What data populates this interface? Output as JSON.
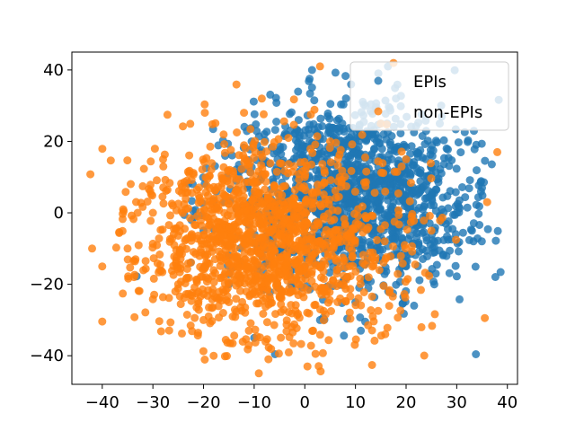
{
  "chart_data": {
    "type": "scatter",
    "xlim": [
      -46,
      42
    ],
    "ylim": [
      -48,
      45
    ],
    "x_ticks": [
      -40,
      -30,
      -20,
      -10,
      0,
      10,
      20,
      30,
      40
    ],
    "y_ticks": [
      -40,
      -20,
      0,
      20,
      40
    ],
    "x_tick_labels": [
      "−40",
      "−30",
      "−20",
      "−10",
      "0",
      "10",
      "20",
      "30",
      "40"
    ],
    "y_tick_labels": [
      "−40",
      "−20",
      "0",
      "20",
      "40"
    ],
    "grid": false,
    "legend_position": "top-right",
    "series": [
      {
        "name": "EPIs",
        "color": "#1f77b4",
        "cluster": {
          "center": [
            10,
            5
          ],
          "spread": [
            12,
            13
          ],
          "angle_deg": 35,
          "count": 1400
        },
        "sample_points": [
          [
            10,
            20
          ],
          [
            15,
            25
          ],
          [
            20,
            15
          ],
          [
            5,
            10
          ],
          [
            25,
            5
          ],
          [
            30,
            0
          ],
          [
            -5,
            5
          ],
          [
            0,
            -15
          ],
          [
            10,
            -25
          ],
          [
            20,
            -15
          ],
          [
            35,
            7
          ],
          [
            -15,
            -20
          ],
          [
            -10,
            -35
          ],
          [
            12,
            30
          ],
          [
            28,
            18
          ],
          [
            -20,
            -5
          ],
          [
            3,
            -30
          ],
          [
            33,
            -5
          ],
          [
            18,
            32
          ],
          [
            -8,
            22
          ]
        ]
      },
      {
        "name": "non-EPIs",
        "color": "#ff7f0e",
        "cluster": {
          "center": [
            -8,
            -8
          ],
          "spread": [
            13,
            14
          ],
          "angle_deg": 30,
          "count": 1400
        },
        "sample_points": [
          [
            -15,
            -25
          ],
          [
            -20,
            -30
          ],
          [
            -10,
            -15
          ],
          [
            -5,
            0
          ],
          [
            0,
            10
          ],
          [
            5,
            20
          ],
          [
            15,
            25
          ],
          [
            20,
            15
          ],
          [
            -30,
            0
          ],
          [
            -35,
            -10
          ],
          [
            -40,
            -15
          ],
          [
            -25,
            -20
          ],
          [
            -18,
            -40
          ],
          [
            -42,
            -10
          ],
          [
            3,
            41
          ],
          [
            38,
            17
          ],
          [
            36,
            3
          ],
          [
            -28,
            15
          ],
          [
            -12,
            28
          ],
          [
            25,
            -5
          ]
        ]
      }
    ]
  }
}
